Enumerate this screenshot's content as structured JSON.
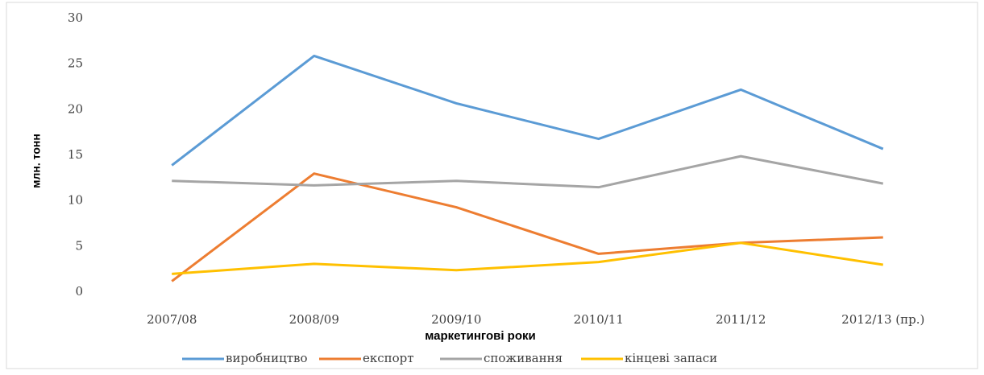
{
  "chart_data": {
    "type": "line",
    "y_label": "млн. тонн",
    "x_label": "маркетингові роки",
    "categories": [
      "2007/08",
      "2008/09",
      "2009/10",
      "2010/11",
      "2011/12",
      "2012/13 (пр.)"
    ],
    "series": [
      {
        "name": "виробництво",
        "color": "#5b9bd5",
        "values": [
          13.9,
          25.9,
          20.7,
          16.8,
          22.2,
          15.7
        ]
      },
      {
        "name": "експорт",
        "color": "#ed7d31",
        "values": [
          1.2,
          13.0,
          9.3,
          4.2,
          5.4,
          6.0
        ]
      },
      {
        "name": "споживання",
        "color": "#a5a5a5",
        "values": [
          12.2,
          11.7,
          12.2,
          11.5,
          14.9,
          11.9
        ]
      },
      {
        "name": "кінцеві запаси",
        "color": "#ffc000",
        "values": [
          2.0,
          3.1,
          2.4,
          3.3,
          5.4,
          3.0
        ]
      }
    ],
    "ylim": [
      0,
      30
    ],
    "yticks": [
      0,
      5,
      10,
      15,
      20,
      25,
      30
    ],
    "grid": false,
    "legend": "bottom"
  }
}
